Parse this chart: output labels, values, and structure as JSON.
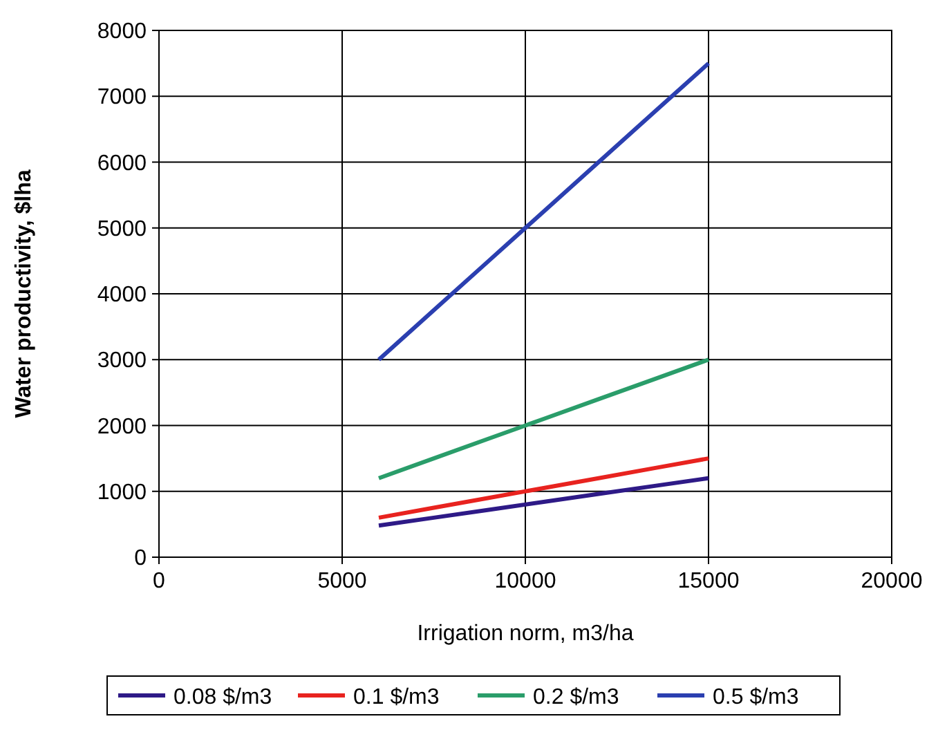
{
  "chart_data": {
    "type": "line",
    "xlabel": "Irrigation norm, m3/ha",
    "ylabel": "Water productivity, $lha",
    "xlim": [
      0,
      20000
    ],
    "xticks": [
      0,
      5000,
      10000,
      15000,
      20000
    ],
    "ylim": [
      0,
      8000
    ],
    "yticks": [
      0,
      1000,
      2000,
      3000,
      4000,
      5000,
      6000,
      7000,
      8000
    ],
    "grid": true,
    "legend": "bottom",
    "marker": "none",
    "line_style": "solid",
    "x": [
      6000,
      7500,
      9000,
      10500,
      12000,
      13500,
      15000
    ],
    "series": [
      {
        "name": "0.08 $/m3",
        "color": "#2e1a87",
        "values": [
          480,
          600,
          720,
          840,
          960,
          1080,
          1200
        ]
      },
      {
        "name": "0.1 $/m3",
        "color": "#e8231f",
        "values": [
          600,
          750,
          900,
          1050,
          1200,
          1350,
          1500
        ]
      },
      {
        "name": "0.2 $/m3",
        "color": "#2a9d6a",
        "values": [
          1200,
          1500,
          1800,
          2100,
          2400,
          2700,
          3000
        ]
      },
      {
        "name": "0.5 $/m3",
        "color": "#2b3fb0",
        "values": [
          3000,
          3750,
          4500,
          5250,
          6000,
          6750,
          7500
        ]
      }
    ]
  }
}
